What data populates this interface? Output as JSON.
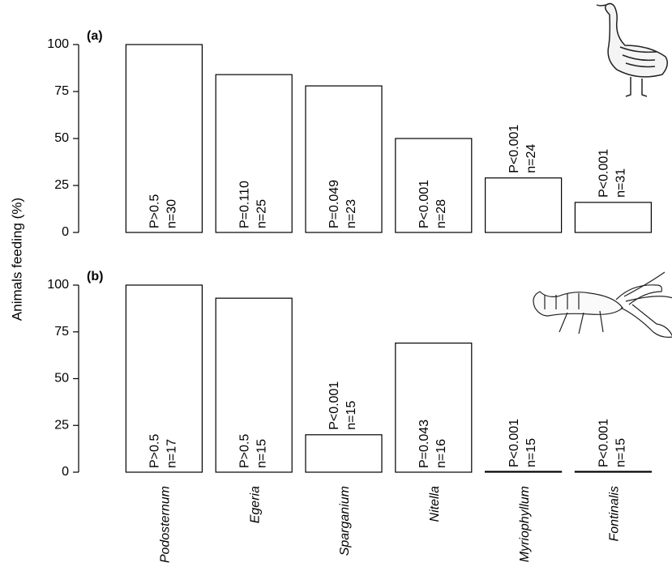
{
  "chart_data": [
    {
      "type": "bar",
      "label": "(a)",
      "ylabel": "Animals feeding (%)",
      "values": [
        100,
        84,
        78,
        50,
        29,
        16
      ],
      "p_labels": [
        "P>0.5",
        "P=0.110",
        "P=0.049",
        "P<0.001",
        "P<0.001",
        "P<0.001"
      ],
      "n_labels": [
        "n=30",
        "n=25",
        "n=23",
        "n=28",
        "n=24",
        "n=31"
      ],
      "ylim": [
        0,
        100
      ],
      "yticks": [
        0,
        25,
        50,
        75,
        100
      ],
      "color": "#ffffff"
    },
    {
      "type": "bar",
      "label": "(b)",
      "categories": [
        "Podosternum",
        "Egeria",
        "Sparganium",
        "Nitella",
        "Myriophyllum",
        "Fontinalis"
      ],
      "values": [
        100,
        93,
        20,
        69,
        0,
        0
      ],
      "p_labels": [
        "P>0.5",
        "P>0.5",
        "P<0.001",
        "P=0.043",
        "P<0.001",
        "P<0.001"
      ],
      "n_labels": [
        "n=17",
        "n=15",
        "n=15",
        "n=16",
        "n=15",
        "n=15"
      ],
      "ylim": [
        0,
        100
      ],
      "yticks": [
        0,
        25,
        50,
        75,
        100
      ],
      "color": "#ffffff"
    }
  ]
}
